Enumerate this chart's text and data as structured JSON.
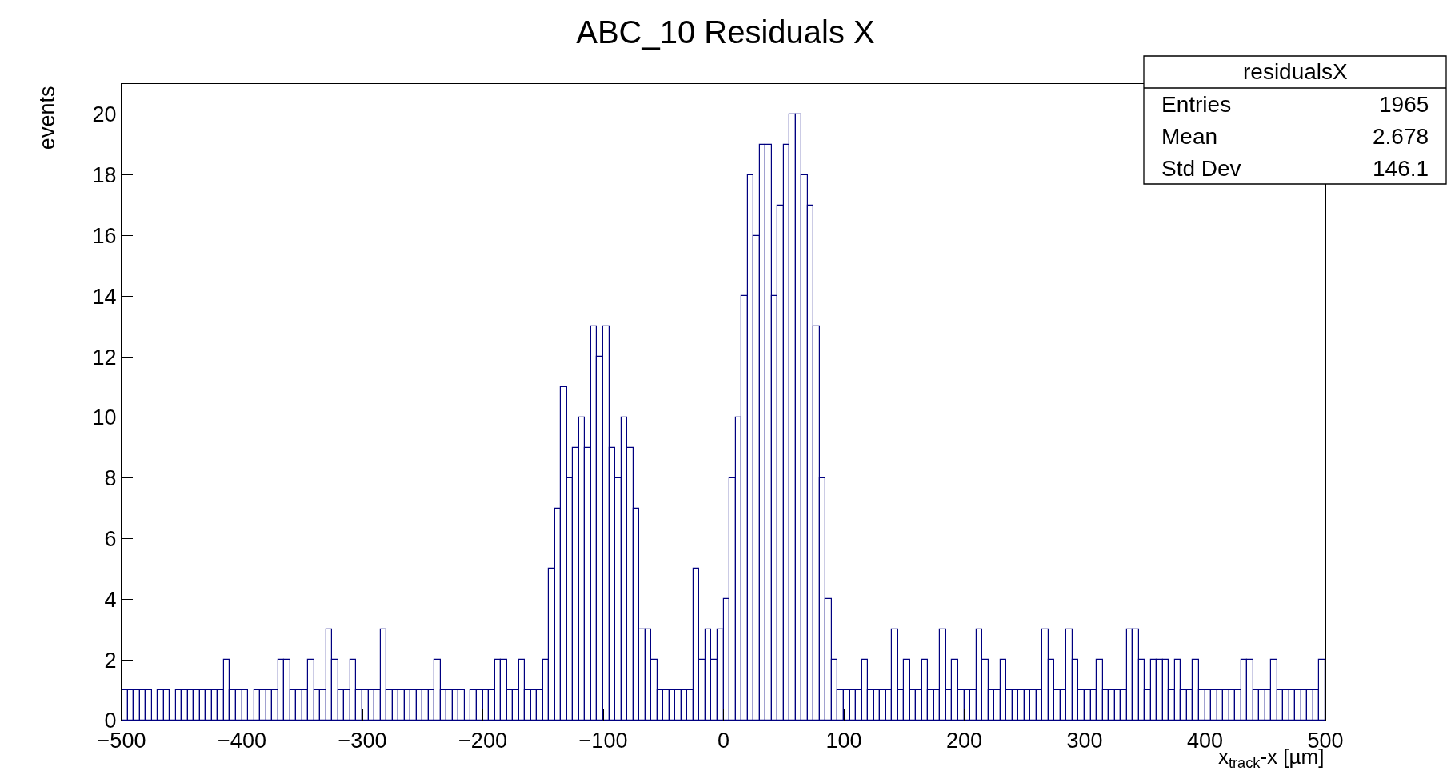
{
  "chart_data": {
    "type": "histogram",
    "title": "ABC_10 Residuals X",
    "xlabel": "x$_{track}$-x [µm]",
    "ylabel": "events",
    "bins": [
      -500,
      -495,
      -490,
      -485,
      -480,
      -475,
      -470,
      -465,
      -460,
      -455,
      -450,
      -445,
      -440,
      -435,
      -430,
      -425,
      -420,
      -415,
      -410,
      -405,
      -400,
      -395,
      -390,
      -385,
      -380,
      -375,
      -370,
      -365,
      -360,
      -355,
      -350,
      -345,
      -340,
      -335,
      -330,
      -325,
      -320,
      -315,
      -310,
      -305,
      -300,
      -295,
      -290,
      -285,
      -280,
      -275,
      -270,
      -265,
      -260,
      -255,
      -250,
      -245,
      -240,
      -235,
      -230,
      -225,
      -220,
      -215,
      -210,
      -205,
      -200,
      -195,
      -190,
      -185,
      -180,
      -175,
      -170,
      -165,
      -160,
      -155,
      -150,
      -145,
      -140,
      -135,
      -130,
      -125,
      -120,
      -115,
      -110,
      -105,
      -100,
      -95,
      -90,
      -85,
      -80,
      -75,
      -70,
      -65,
      -60,
      -55,
      -50,
      -45,
      -40,
      -35,
      -30,
      -25,
      -20,
      -15,
      -10,
      -5,
      0,
      5,
      10,
      15,
      20,
      25,
      30,
      35,
      40,
      45,
      50,
      55,
      60,
      65,
      70,
      75,
      80,
      85,
      90,
      95,
      100,
      105,
      110,
      115,
      120,
      125,
      130,
      135,
      140,
      145,
      150,
      155,
      160,
      165,
      170,
      175,
      180,
      185,
      190,
      195,
      200,
      205,
      210,
      215,
      220,
      225,
      230,
      235,
      240,
      245,
      250,
      255,
      260,
      265,
      270,
      275,
      280,
      285,
      290,
      295,
      300,
      305,
      310,
      315,
      320,
      325,
      330,
      335,
      340,
      345,
      350,
      355,
      360,
      365,
      370,
      375,
      380,
      385,
      390,
      395,
      400,
      405,
      410,
      415,
      420,
      425,
      430,
      435,
      440,
      445,
      450,
      455,
      460,
      465,
      470,
      475,
      480,
      485,
      490,
      495,
      500
    ],
    "values": [
      1,
      1,
      1,
      1,
      1,
      0,
      1,
      1,
      0,
      1,
      1,
      1,
      1,
      1,
      1,
      1,
      1,
      2,
      1,
      1,
      1,
      0,
      1,
      1,
      1,
      1,
      2,
      2,
      1,
      1,
      1,
      2,
      1,
      1,
      3,
      2,
      1,
      1,
      2,
      1,
      1,
      1,
      1,
      3,
      1,
      1,
      1,
      1,
      1,
      1,
      1,
      1,
      2,
      1,
      1,
      1,
      1,
      0,
      1,
      1,
      1,
      1,
      2,
      2,
      1,
      1,
      2,
      1,
      1,
      1,
      2,
      5,
      7,
      11,
      8,
      9,
      10,
      9,
      13,
      12,
      13,
      9,
      8,
      10,
      9,
      7,
      3,
      3,
      2,
      1,
      1,
      1,
      1,
      1,
      1,
      5,
      2,
      3,
      2,
      3,
      4,
      8,
      10,
      14,
      18,
      16,
      19,
      19,
      14,
      17,
      19,
      20,
      20,
      18,
      17,
      13,
      8,
      4,
      2,
      1,
      1,
      1,
      1,
      2,
      1,
      1,
      1,
      1,
      3,
      1,
      2,
      1,
      1,
      2,
      1,
      1,
      3,
      1,
      2,
      1,
      1,
      1,
      3,
      2,
      1,
      1,
      2,
      1,
      1,
      1,
      1,
      1,
      1,
      3,
      2,
      1,
      1,
      3,
      2,
      1,
      1,
      1,
      2,
      1,
      1,
      1,
      1,
      3,
      3,
      2,
      1,
      2,
      2,
      2,
      1,
      2,
      1,
      1,
      2,
      1,
      1,
      1,
      1,
      1,
      1,
      1,
      2,
      2,
      1,
      1,
      1,
      2,
      1,
      1,
      1,
      1,
      1,
      1,
      1,
      2
    ],
    "color": "#000080",
    "xlim": [
      -500,
      500
    ],
    "xticks": [
      -500,
      -400,
      -300,
      -200,
      -100,
      0,
      100,
      200,
      300,
      400,
      500
    ],
    "ylim": [
      0,
      21
    ],
    "yticks": [
      0,
      2,
      4,
      6,
      8,
      10,
      12,
      14,
      16,
      18,
      20
    ],
    "annotations": [
      "residualsX",
      "Entries",
      "1965",
      "Mean",
      "2.678",
      "Std Dev",
      "146.1"
    ]
  }
}
